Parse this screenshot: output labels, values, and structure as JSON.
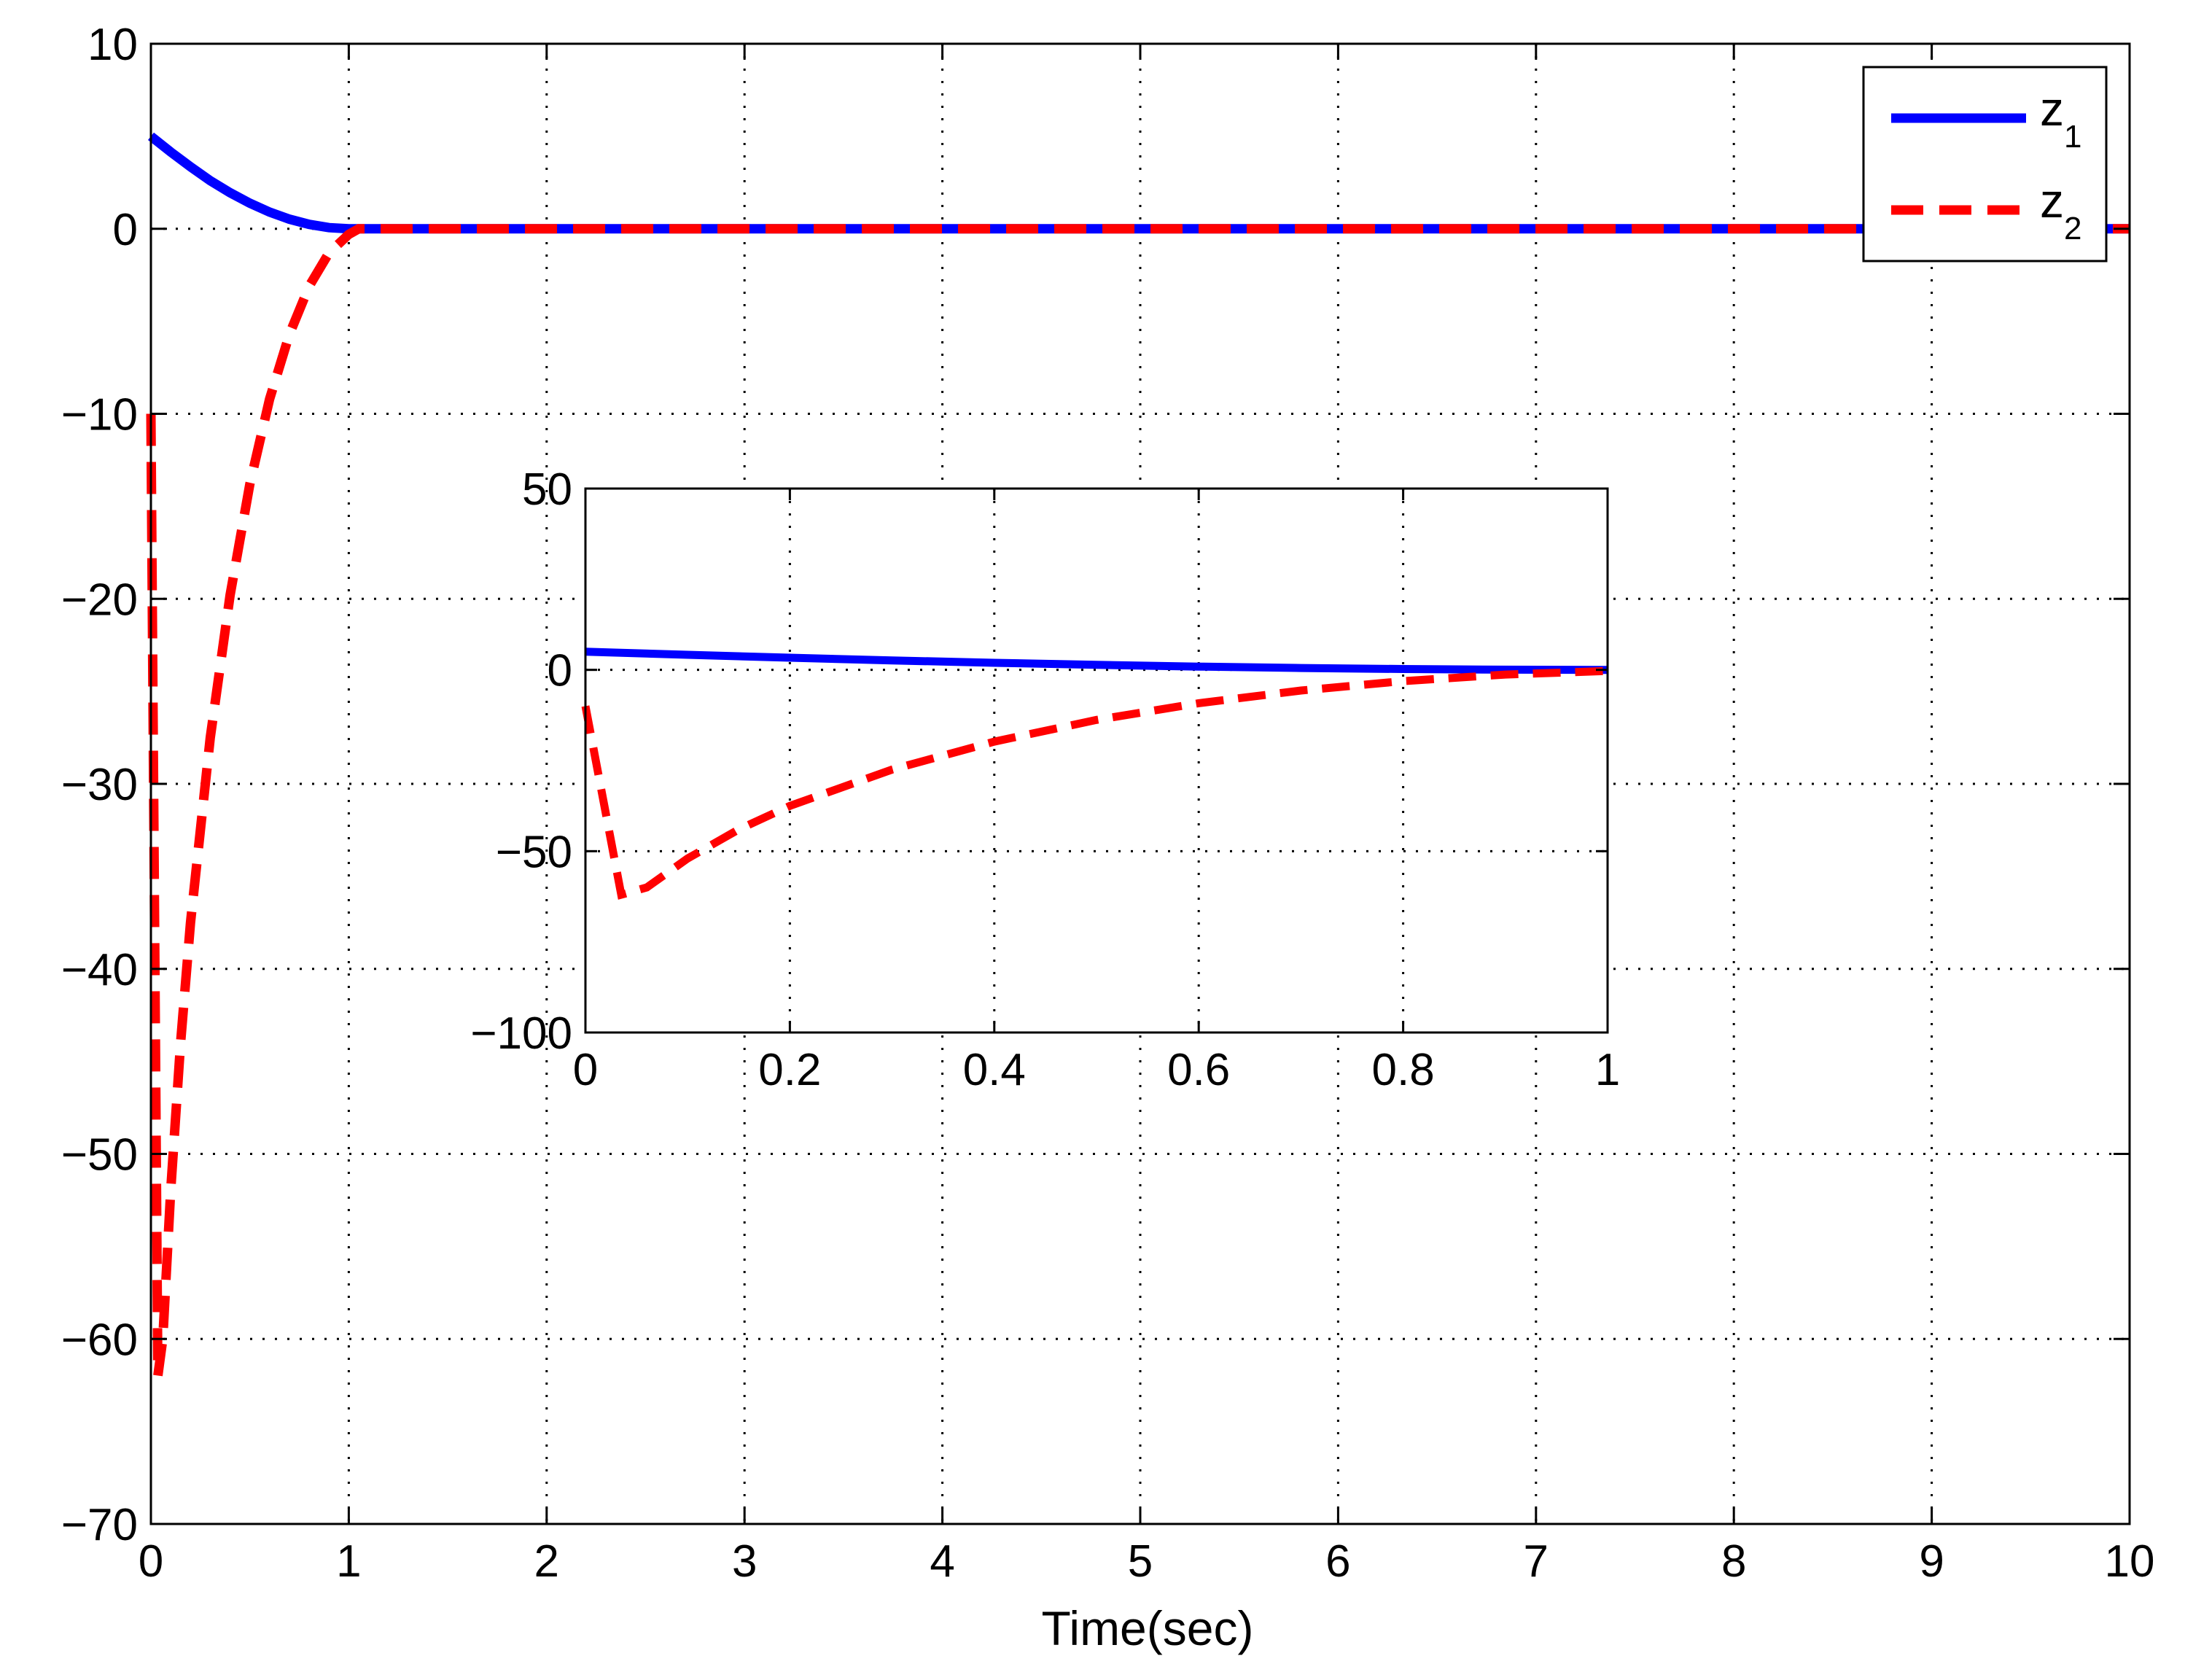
{
  "chart_data": [
    {
      "id": "main",
      "type": "line",
      "title": "",
      "xlabel": "Time(sec)",
      "ylabel": "",
      "xlim": [
        0,
        10
      ],
      "ylim": [
        -70,
        10
      ],
      "xticks": [
        0,
        1,
        2,
        3,
        4,
        5,
        6,
        7,
        8,
        9,
        10
      ],
      "yticks": [
        10,
        0,
        -10,
        -20,
        -30,
        -40,
        -50,
        -60,
        -70
      ],
      "xtick_labels": [
        "0",
        "1",
        "2",
        "3",
        "4",
        "5",
        "6",
        "7",
        "8",
        "9",
        "10"
      ],
      "ytick_labels": [
        "10",
        "0",
        "−10",
        "−20",
        "−30",
        "−40",
        "−50",
        "−60",
        "−70"
      ],
      "grid": true,
      "legend": {
        "position": "top-right",
        "entries": [
          {
            "series": "z1",
            "base": "z",
            "sub": "1"
          },
          {
            "series": "z2",
            "base": "z",
            "sub": "2"
          }
        ]
      },
      "series": [
        {
          "name": "z1",
          "color": "#0000ff",
          "style": "solid",
          "x": [
            0,
            0.1,
            0.2,
            0.3,
            0.4,
            0.5,
            0.6,
            0.7,
            0.8,
            0.9,
            1.0,
            1.1,
            2,
            3,
            4,
            5,
            6,
            7,
            8,
            9,
            10
          ],
          "y": [
            5,
            4.15,
            3.35,
            2.6,
            1.95,
            1.38,
            0.9,
            0.52,
            0.24,
            0.06,
            0,
            0,
            0,
            0,
            0,
            0,
            0,
            0,
            0,
            0,
            0
          ]
        },
        {
          "name": "z2",
          "color": "#ff0000",
          "style": "dashed",
          "x": [
            0,
            0.035,
            0.06,
            0.1,
            0.15,
            0.2,
            0.3,
            0.4,
            0.5,
            0.6,
            0.7,
            0.8,
            0.9,
            1.0,
            1.05,
            1.1,
            2,
            3,
            4,
            5,
            6,
            7,
            8,
            9,
            10
          ],
          "y": [
            -10,
            -62,
            -60,
            -52,
            -44,
            -37.5,
            -27.5,
            -19.8,
            -13.8,
            -9.2,
            -5.7,
            -3.1,
            -1.3,
            -0.3,
            0,
            0,
            0,
            0,
            0,
            0,
            0,
            0,
            0,
            0,
            0
          ]
        }
      ]
    },
    {
      "id": "inset",
      "type": "line",
      "title": "",
      "xlabel": "",
      "ylabel": "",
      "xlim": [
        0,
        1
      ],
      "ylim": [
        -100,
        50
      ],
      "xticks": [
        0,
        0.2,
        0.4,
        0.6,
        0.8,
        1
      ],
      "yticks": [
        50,
        0,
        -50,
        -100
      ],
      "xtick_labels": [
        "0",
        "0.2",
        "0.4",
        "0.6",
        "0.8",
        "1"
      ],
      "ytick_labels": [
        "50",
        "0",
        "−50",
        "−100"
      ],
      "grid": true,
      "series": [
        {
          "name": "z1",
          "color": "#0000ff",
          "style": "solid",
          "x": [
            0,
            0.1,
            0.2,
            0.3,
            0.4,
            0.5,
            0.6,
            0.7,
            0.8,
            0.9,
            1.0
          ],
          "y": [
            5,
            4.15,
            3.35,
            2.6,
            1.95,
            1.38,
            0.9,
            0.52,
            0.24,
            0.06,
            0
          ]
        },
        {
          "name": "z2",
          "color": "#ff0000",
          "style": "dashed",
          "x": [
            0,
            0.035,
            0.06,
            0.1,
            0.15,
            0.2,
            0.3,
            0.4,
            0.5,
            0.6,
            0.7,
            0.8,
            0.9,
            1.0
          ],
          "y": [
            -10,
            -62,
            -60,
            -52,
            -44,
            -37.5,
            -27.5,
            -19.8,
            -13.8,
            -9.2,
            -5.7,
            -3.1,
            -1.3,
            -0.3
          ]
        }
      ]
    }
  ]
}
